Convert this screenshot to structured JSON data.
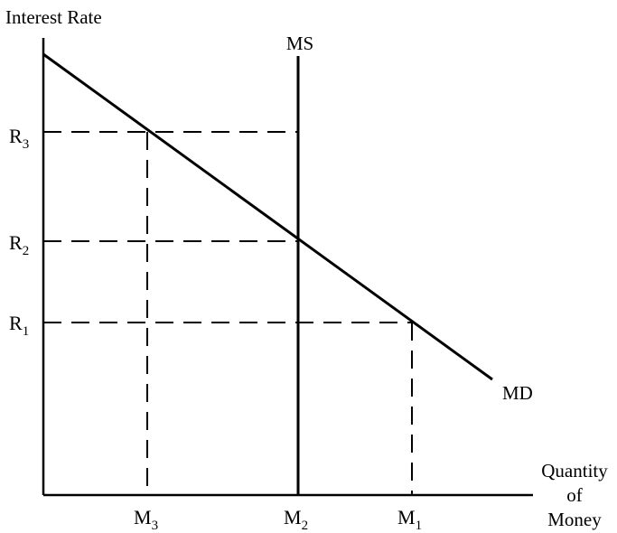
{
  "y_axis_title": "Interest Rate",
  "x_axis_title": [
    "Quantity",
    "of",
    "Money"
  ],
  "supply_label": "MS",
  "demand_label": "MD",
  "y_ticks": [
    {
      "base": "R",
      "sub": "3"
    },
    {
      "base": "R",
      "sub": "2"
    },
    {
      "base": "R",
      "sub": "1"
    }
  ],
  "x_ticks": [
    {
      "base": "M",
      "sub": "3"
    },
    {
      "base": "M",
      "sub": "2"
    },
    {
      "base": "M",
      "sub": "1"
    }
  ]
}
